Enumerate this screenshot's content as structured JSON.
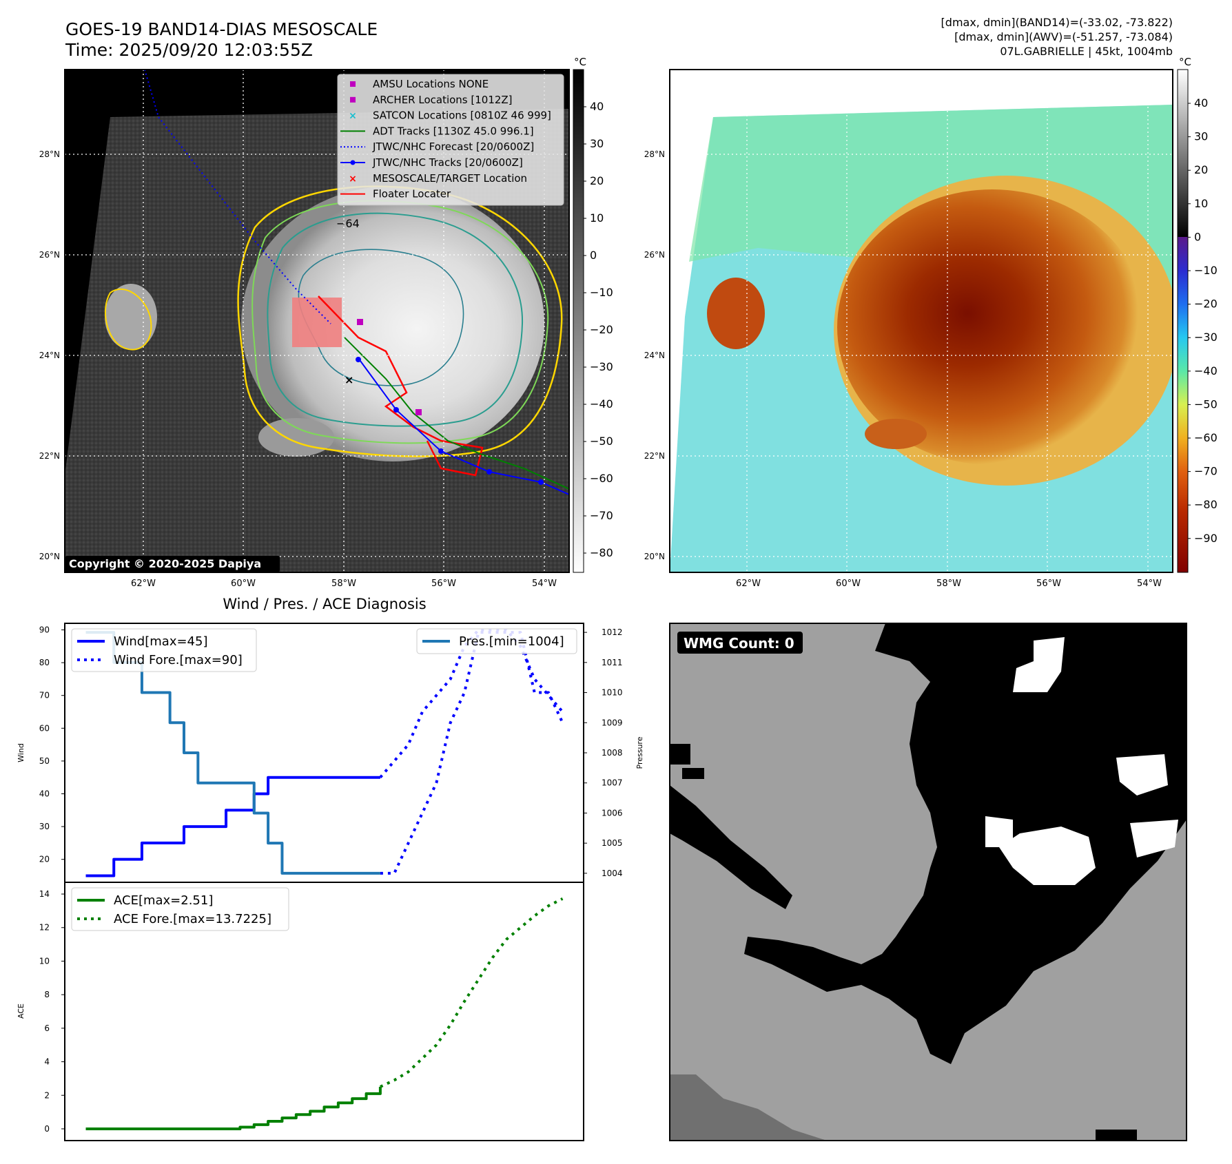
{
  "header": {
    "title": "GOES-19 BAND14-DIAS MESOSCALE",
    "time": "Time: 2025/09/20 12:03:55Z",
    "info_line1": "[dmax, dmin](BAND14)=(-33.02, -73.822)",
    "info_line2": "[dmax, dmin](AWV)=(-51.257, -73.084)",
    "info_line3": "07L.GABRIELLE | 45kt, 1004mb"
  },
  "maps": {
    "lon_ticks": [
      "62°W",
      "60°W",
      "58°W",
      "56°W",
      "54°W"
    ],
    "lat_ticks": [
      "28°N",
      "26°N",
      "24°N",
      "22°N",
      "20°N"
    ],
    "copyright": "Copyright © 2020-2025 Dapiya",
    "contour_label": "−64"
  },
  "colorbars": {
    "unit": "°C",
    "gray_ticks": [
      "40",
      "30",
      "20",
      "10",
      "0",
      "−10",
      "−20",
      "−30",
      "−40",
      "−50",
      "−60",
      "−70",
      "−80"
    ],
    "color_ticks": [
      "40",
      "30",
      "20",
      "10",
      "0",
      "−10",
      "−20",
      "−30",
      "−40",
      "−50",
      "−60",
      "−70",
      "−80",
      "−90"
    ]
  },
  "legend": {
    "items": [
      {
        "label": "AMSU Locations NONE",
        "color": "#bf00bf",
        "marker": "square"
      },
      {
        "label": "ARCHER Locations [1012Z]",
        "color": "#bf00bf",
        "marker": "square"
      },
      {
        "label": "SATCON Locations [0810Z 46 999]",
        "color": "#17becf",
        "marker": "x"
      },
      {
        "label": "ADT Tracks [1130Z 45.0 996.1]",
        "color": "#008000",
        "marker": "line"
      },
      {
        "label": "JTWC/NHC Forecast [20/0600Z]",
        "color": "#0000ff",
        "marker": "dotted"
      },
      {
        "label": "JTWC/NHC Tracks [20/0600Z]",
        "color": "#0000ff",
        "marker": "line-dot"
      },
      {
        "label": "MESOSCALE/TARGET Location",
        "color": "#ff0000",
        "marker": "x"
      },
      {
        "label": "Floater Locater",
        "color": "#ff0000",
        "marker": "line"
      }
    ]
  },
  "diagnosis": {
    "title": "Wind / Pres. / ACE Diagnosis",
    "wind_ylabel": "Wind",
    "pres_ylabel": "Pressure",
    "ace_ylabel": "ACE",
    "wind_legend": [
      "Wind[max=45]",
      "Wind Fore.[max=90]"
    ],
    "pres_legend": "Pres.[min=1004]",
    "ace_legend": [
      "ACE[max=2.51]",
      "ACE Fore.[max=13.7225]"
    ]
  },
  "wmg": {
    "label": "WMG Count: 0"
  },
  "chart_data": [
    {
      "type": "line",
      "title": "Wind / Pres. / ACE Diagnosis",
      "ylabel": "Wind",
      "ylim": [
        13,
        92
      ],
      "yticks": [
        20,
        30,
        40,
        50,
        60,
        70,
        80,
        90
      ],
      "series": [
        {
          "name": "Wind[max=45]",
          "x": [
            0,
            1,
            2,
            3,
            4,
            5,
            6,
            7,
            8,
            9,
            10,
            11,
            12,
            13,
            14,
            15,
            16,
            17,
            18,
            19,
            20,
            21
          ],
          "values": [
            15,
            15,
            20,
            20,
            25,
            25,
            25,
            30,
            30,
            30,
            35,
            35,
            40,
            45,
            45,
            45,
            45,
            45,
            45,
            45,
            45,
            45
          ],
          "color": "#0000ff",
          "style": "solid"
        },
        {
          "name": "Wind Fore.[max=90]",
          "x": [
            21,
            22,
            23,
            24,
            25,
            26,
            27,
            28,
            29,
            30,
            31,
            32,
            33,
            34
          ],
          "values": [
            45,
            50,
            55,
            65,
            70,
            75,
            85,
            90,
            90,
            90,
            85,
            75,
            70,
            65
          ],
          "color": "#0000ff",
          "style": "dotted"
        }
      ]
    },
    {
      "type": "line",
      "ylabel": "Pressure",
      "ylim": [
        1003.7,
        1012.3
      ],
      "yticks": [
        1004,
        1005,
        1006,
        1007,
        1008,
        1009,
        1010,
        1011,
        1012
      ],
      "series": [
        {
          "name": "Pres.[min=1004]",
          "x": [
            0,
            1,
            2,
            3,
            4,
            5,
            6,
            7,
            8,
            9,
            10,
            11,
            12,
            13,
            14,
            15,
            16,
            17,
            18,
            19,
            20,
            21
          ],
          "values": [
            1012,
            1012,
            1011,
            1011,
            1010,
            1010,
            1009,
            1008,
            1007,
            1007,
            1007,
            1007,
            1006,
            1005,
            1004,
            1004,
            1004,
            1004,
            1004,
            1004,
            1004,
            1004
          ],
          "color": "#1f77b4",
          "style": "solid"
        },
        {
          "name": "",
          "x": [
            21,
            22,
            23,
            24,
            25,
            26,
            27,
            28,
            29,
            30,
            31,
            32,
            33,
            34
          ],
          "values": [
            1004,
            1004,
            1005,
            1006,
            1007,
            1009,
            1010,
            1012,
            1012,
            1012,
            1012,
            1010,
            1010,
            1009
          ],
          "color": "#0000ff",
          "style": "dotted"
        }
      ]
    },
    {
      "type": "line",
      "ylabel": "ACE",
      "ylim": [
        -0.7,
        14.7
      ],
      "yticks": [
        0,
        2,
        4,
        6,
        8,
        10,
        12,
        14
      ],
      "series": [
        {
          "name": "ACE[max=2.51]",
          "x": [
            0,
            1,
            2,
            3,
            4,
            5,
            6,
            7,
            8,
            9,
            10,
            11,
            12,
            13,
            14,
            15,
            16,
            17,
            18,
            19,
            20,
            21
          ],
          "values": [
            0,
            0,
            0,
            0,
            0,
            0,
            0,
            0,
            0,
            0,
            0,
            0.1,
            0.25,
            0.45,
            0.65,
            0.85,
            1.05,
            1.3,
            1.55,
            1.8,
            2.1,
            2.51
          ],
          "color": "#008000",
          "style": "solid"
        },
        {
          "name": "ACE Fore.[max=13.7225]",
          "x": [
            21,
            22,
            23,
            24,
            25,
            26,
            27,
            28,
            29,
            30,
            31,
            32,
            33,
            34
          ],
          "values": [
            2.51,
            2.9,
            3.4,
            4.2,
            5.0,
            6.2,
            7.6,
            8.9,
            10.2,
            11.3,
            12.0,
            12.7,
            13.3,
            13.7225
          ],
          "color": "#008000",
          "style": "dotted"
        }
      ]
    }
  ]
}
